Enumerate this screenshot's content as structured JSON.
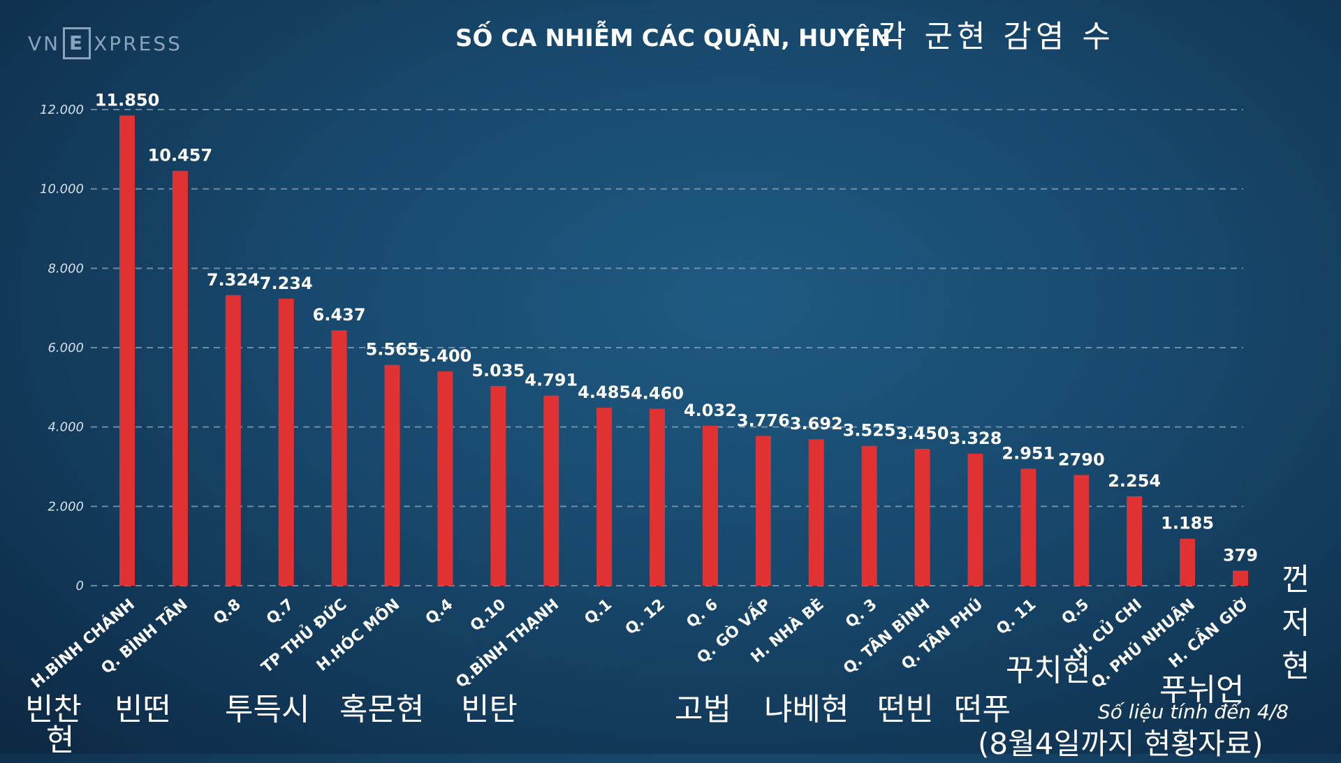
{
  "brand": {
    "logo_left": "VN",
    "logo_box": "E",
    "logo_right": "XPRESS"
  },
  "header": {
    "title": "SỐ CA NHIỄM CÁC QUẬN, HUYỆN",
    "title_ko": "각 군현 감염 수"
  },
  "colors": {
    "bar": "#e03232",
    "grid": "#8ea7bd",
    "text": "#ffffff"
  },
  "chart_data": {
    "type": "bar",
    "title": "SỐ CA NHIỄM CÁC QUẬN, HUYỆN",
    "xlabel": "",
    "ylabel": "",
    "ylim": [
      0,
      12000
    ],
    "yticks": [
      0,
      2000,
      4000,
      6000,
      8000,
      10000,
      12000
    ],
    "ytick_labels": [
      "0",
      "2.000",
      "4.000",
      "6.000",
      "8.000",
      "10.000",
      "12.000"
    ],
    "grid": true,
    "categories": [
      "H.BÌNH CHÁNH",
      "Q. BÌNH TÂN",
      "Q.8",
      "Q.7",
      "TP THỦ ĐỨC",
      "H.HÓC MÔN",
      "Q.4",
      "Q.10",
      "Q.BÌNH THẠNH",
      "Q.1",
      "Q. 12",
      "Q. 6",
      "Q. GÒ VẤP",
      "H. NHÀ BÈ",
      "Q. 3",
      "Q. TÂN BÌNH",
      "Q. TÂN PHÚ",
      "Q. 11",
      "Q.5",
      "H. CỦ CHI",
      "Q. PHÚ NHUẬN",
      "H. CẦN GIỜ"
    ],
    "values": [
      11850,
      10457,
      7324,
      7234,
      6437,
      5565,
      5400,
      5035,
      4791,
      4485,
      4460,
      4032,
      3776,
      3692,
      3525,
      3450,
      3328,
      2951,
      2790,
      2254,
      1185,
      379
    ],
    "value_labels": [
      "11.850",
      "10.457",
      "7.324",
      "7.234",
      "6.437",
      "5.565",
      "5.400",
      "5.035",
      "4.791",
      "4.485",
      "4.460",
      "4.032",
      "3.776",
      "3.692",
      "3.525",
      "3.450",
      "3.328",
      "2.951",
      "2790",
      "2.254",
      "1.185",
      "379"
    ]
  },
  "korean_labels": {
    "binh_chanh_1": "빈찬",
    "binh_chanh_2": "현",
    "binh_tan": "빈떤",
    "thu_duc": "투득시",
    "hoc_mon": "혹몬현",
    "binh_thanh": "빈탄",
    "go_vap": "고법",
    "nha_be": "냐베현",
    "tan_binh": "떤빈",
    "tan_phu": "떤푸",
    "cu_chi": "꾸치현",
    "phu_nhuan": "푸뉘언",
    "can_gio_1": "껀",
    "can_gio_2": "저",
    "can_gio_3": "현"
  },
  "footnote": {
    "text": "Số liệu tính đến 4/8",
    "text_ko": "(8월4일까지 현황자료)"
  }
}
